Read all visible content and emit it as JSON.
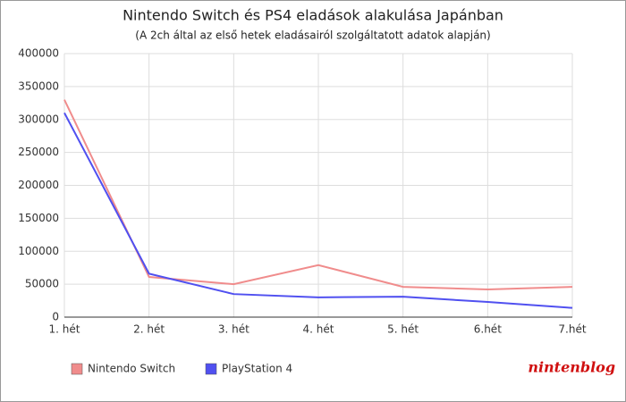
{
  "chart_data": {
    "type": "line",
    "title": "Nintendo Switch és PS4 eladások alakulása Japánban",
    "subtitle": "(A 2ch által az első hetek eladásairól szolgáltatott adatok alapján)",
    "categories": [
      "1. hét",
      "2. hét",
      "3. hét",
      "4. hét",
      "5. hét",
      "6.hét",
      "7.hét"
    ],
    "series": [
      {
        "name": "Nintendo Switch",
        "color": "#f08c8c",
        "values": [
          330000,
          61000,
          50000,
          79000,
          46000,
          42000,
          46000
        ]
      },
      {
        "name": "PlayStation 4",
        "color": "#5050f0",
        "values": [
          310000,
          66000,
          35000,
          30000,
          31000,
          23000,
          14000
        ]
      }
    ],
    "ylim": [
      0,
      400000
    ],
    "yticks": [
      0,
      50000,
      100000,
      150000,
      200000,
      250000,
      300000,
      350000,
      400000
    ],
    "grid": true,
    "legend": "bottom-left",
    "watermark": "nintenblog"
  }
}
